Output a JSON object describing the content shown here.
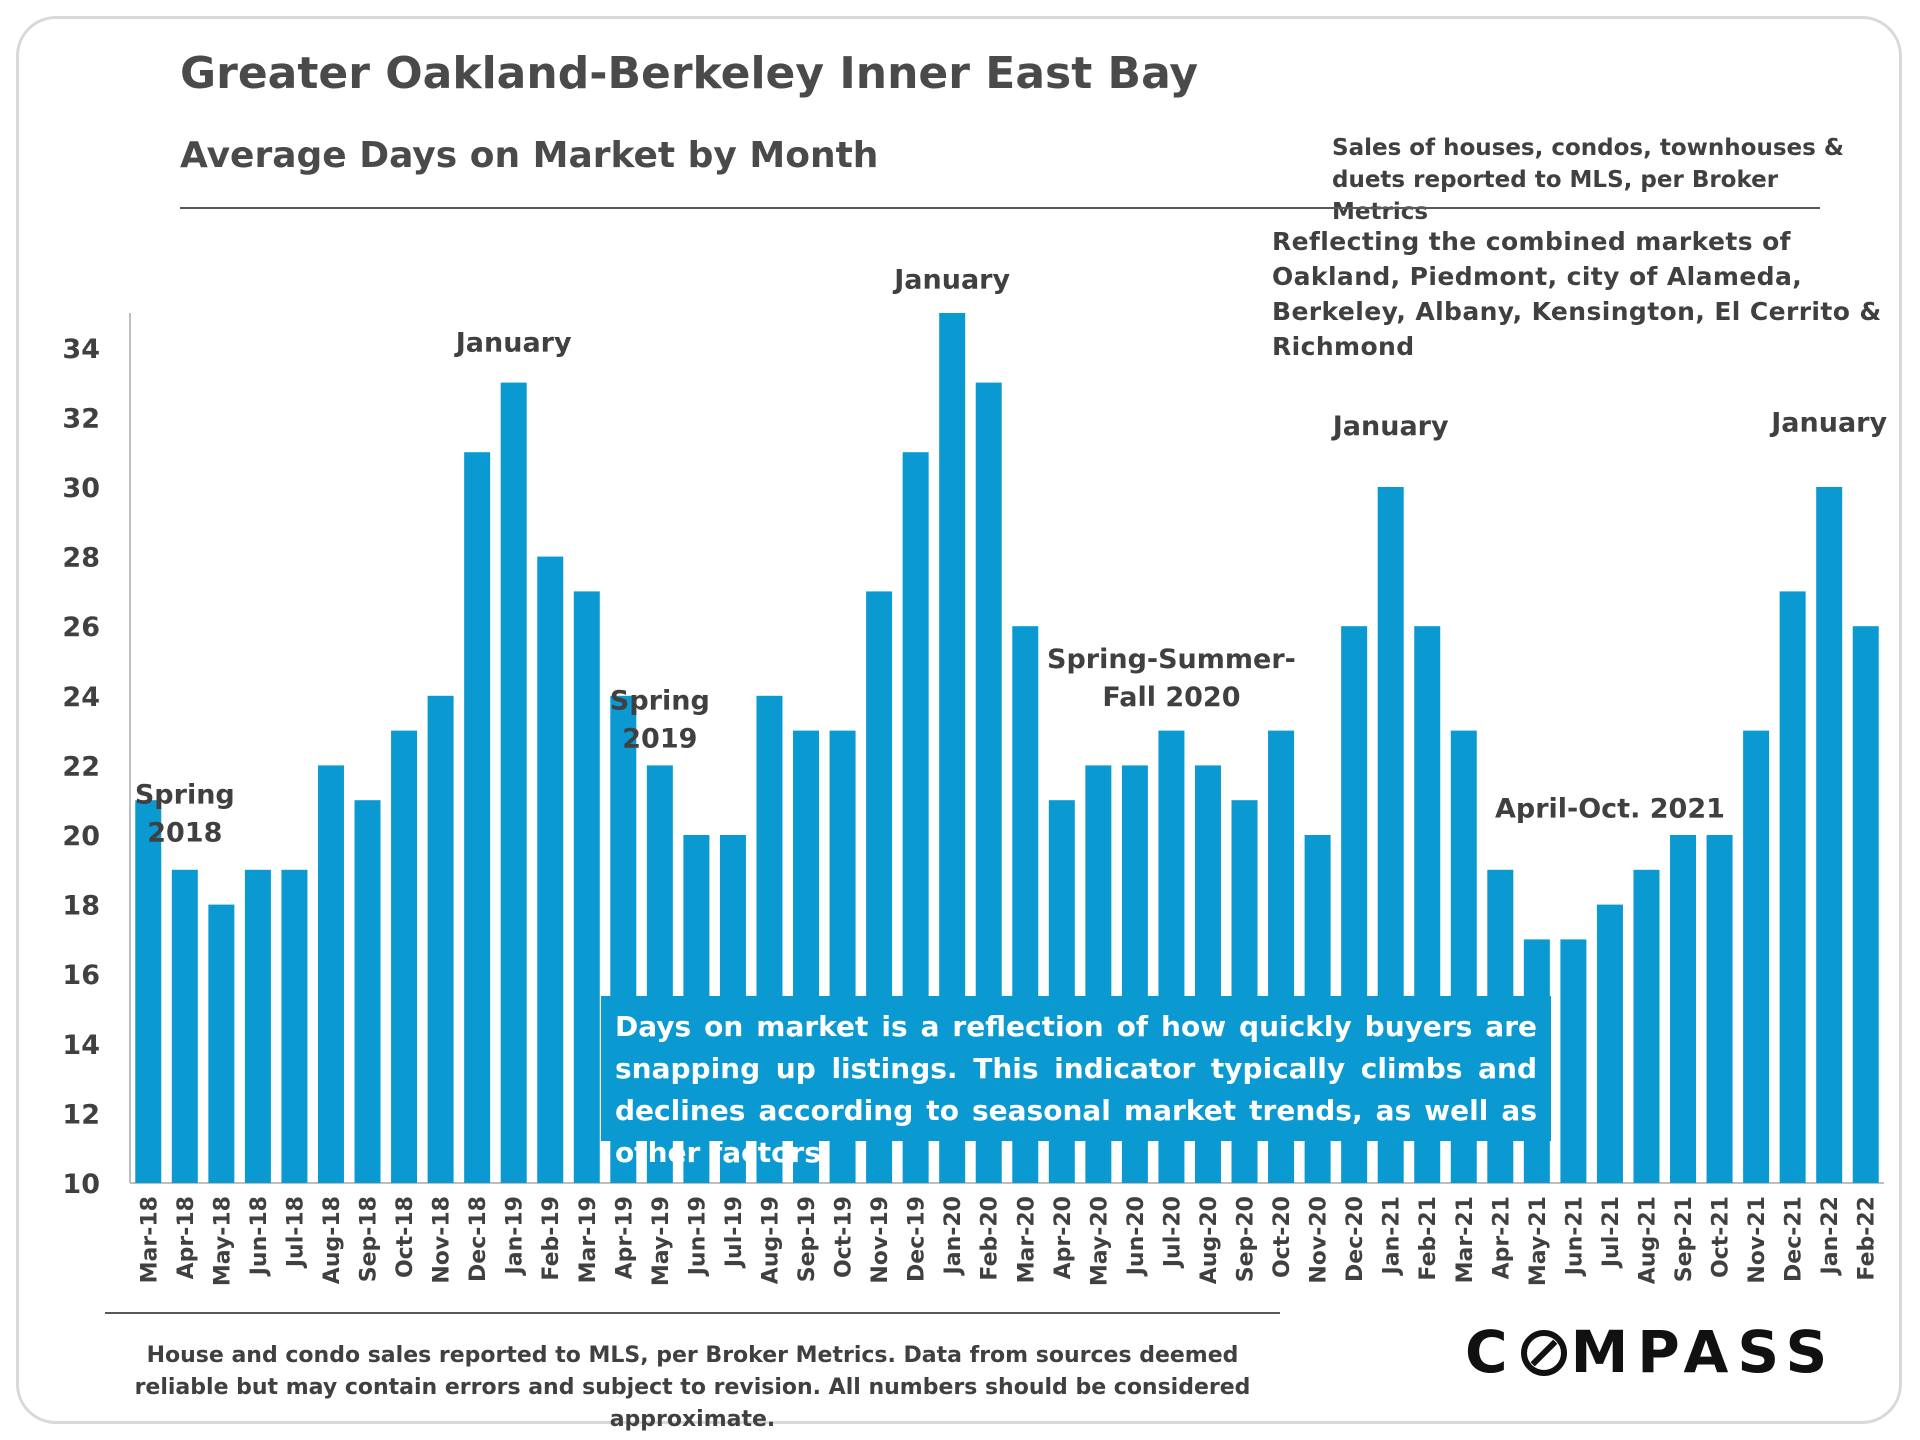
{
  "header": {
    "title": "Greater Oakland-Berkeley Inner East Bay",
    "subtitle": "Average Days on Market by Month",
    "source_note": "Sales of houses, condos, townhouses & duets reported to MLS, per Broker Metrics",
    "market_note": "Reflecting the combined markets of Oakland, Piedmont, city of Alameda, Berkeley, Albany, Kensington, El Cerrito & Richmond"
  },
  "callout": "Days on market is a reflection of how quickly buyers are snapping up listings. This indicator typically climbs and declines according to seasonal market trends, as well as other factors.",
  "footer": "House and condo sales reported to MLS, per Broker Metrics. Data from sources deemed reliable but may contain errors and subject to revision. All numbers should be considered approximate.",
  "logo": {
    "pre": "C",
    "post": "MPASS"
  },
  "colors": {
    "bar": "#0a9ad1",
    "text": "#404040",
    "callout_bg": "#0a9ad1"
  },
  "chart_data": {
    "type": "bar",
    "title": "Average Days on Market by Month",
    "xlabel": "",
    "ylabel": "",
    "ylim": [
      10,
      35
    ],
    "yticks": [
      10,
      12,
      14,
      16,
      18,
      20,
      22,
      24,
      26,
      28,
      30,
      32,
      34
    ],
    "categories": [
      "Mar-18",
      "Apr-18",
      "May-18",
      "Jun-18",
      "Jul-18",
      "Aug-18",
      "Sep-18",
      "Oct-18",
      "Nov-18",
      "Dec-18",
      "Jan-19",
      "Feb-19",
      "Mar-19",
      "Apr-19",
      "May-19",
      "Jun-19",
      "Jul-19",
      "Aug-19",
      "Sep-19",
      "Oct-19",
      "Nov-19",
      "Dec-19",
      "Jan-20",
      "Feb-20",
      "Mar-20",
      "Apr-20",
      "May-20",
      "Jun-20",
      "Jul-20",
      "Aug-20",
      "Sep-20",
      "Oct-20",
      "Nov-20",
      "Dec-20",
      "Jan-21",
      "Feb-21",
      "Mar-21",
      "Apr-21",
      "May-21",
      "Jun-21",
      "Jul-21",
      "Aug-21",
      "Sep-21",
      "Oct-21",
      "Nov-21",
      "Dec-21",
      "Jan-22",
      "Feb-22"
    ],
    "values": [
      21,
      19,
      18,
      19,
      19,
      22,
      21,
      23,
      24,
      31,
      33,
      28,
      27,
      24,
      22,
      20,
      20,
      24,
      23,
      23,
      27,
      31,
      35,
      33,
      26,
      21,
      22,
      22,
      23,
      22,
      21,
      23,
      20,
      26,
      30,
      26,
      23,
      19,
      17,
      17,
      18,
      19,
      20,
      20,
      23,
      27,
      30,
      26
    ],
    "annotations": [
      {
        "lines": [
          "Spring",
          "2018"
        ],
        "category": "Apr-18",
        "y": 20.9
      },
      {
        "lines": [
          "January"
        ],
        "category": "Jan-19",
        "y": 33.9
      },
      {
        "lines": [
          "Spring",
          "2019"
        ],
        "category": "May-19",
        "y": 23.6
      },
      {
        "lines": [
          "January"
        ],
        "category": "Jan-20",
        "y": 35.7
      },
      {
        "lines": [
          "Spring-Summer-",
          "Fall 2020"
        ],
        "category": "Jul-20",
        "y": 24.8
      },
      {
        "lines": [
          "January"
        ],
        "category": "Jan-21",
        "y": 31.5
      },
      {
        "lines": [
          "April-Oct.  2021"
        ],
        "category": "Jul-21",
        "y": 20.5
      },
      {
        "lines": [
          "January"
        ],
        "category": "Jan-22",
        "y": 31.6
      }
    ]
  }
}
